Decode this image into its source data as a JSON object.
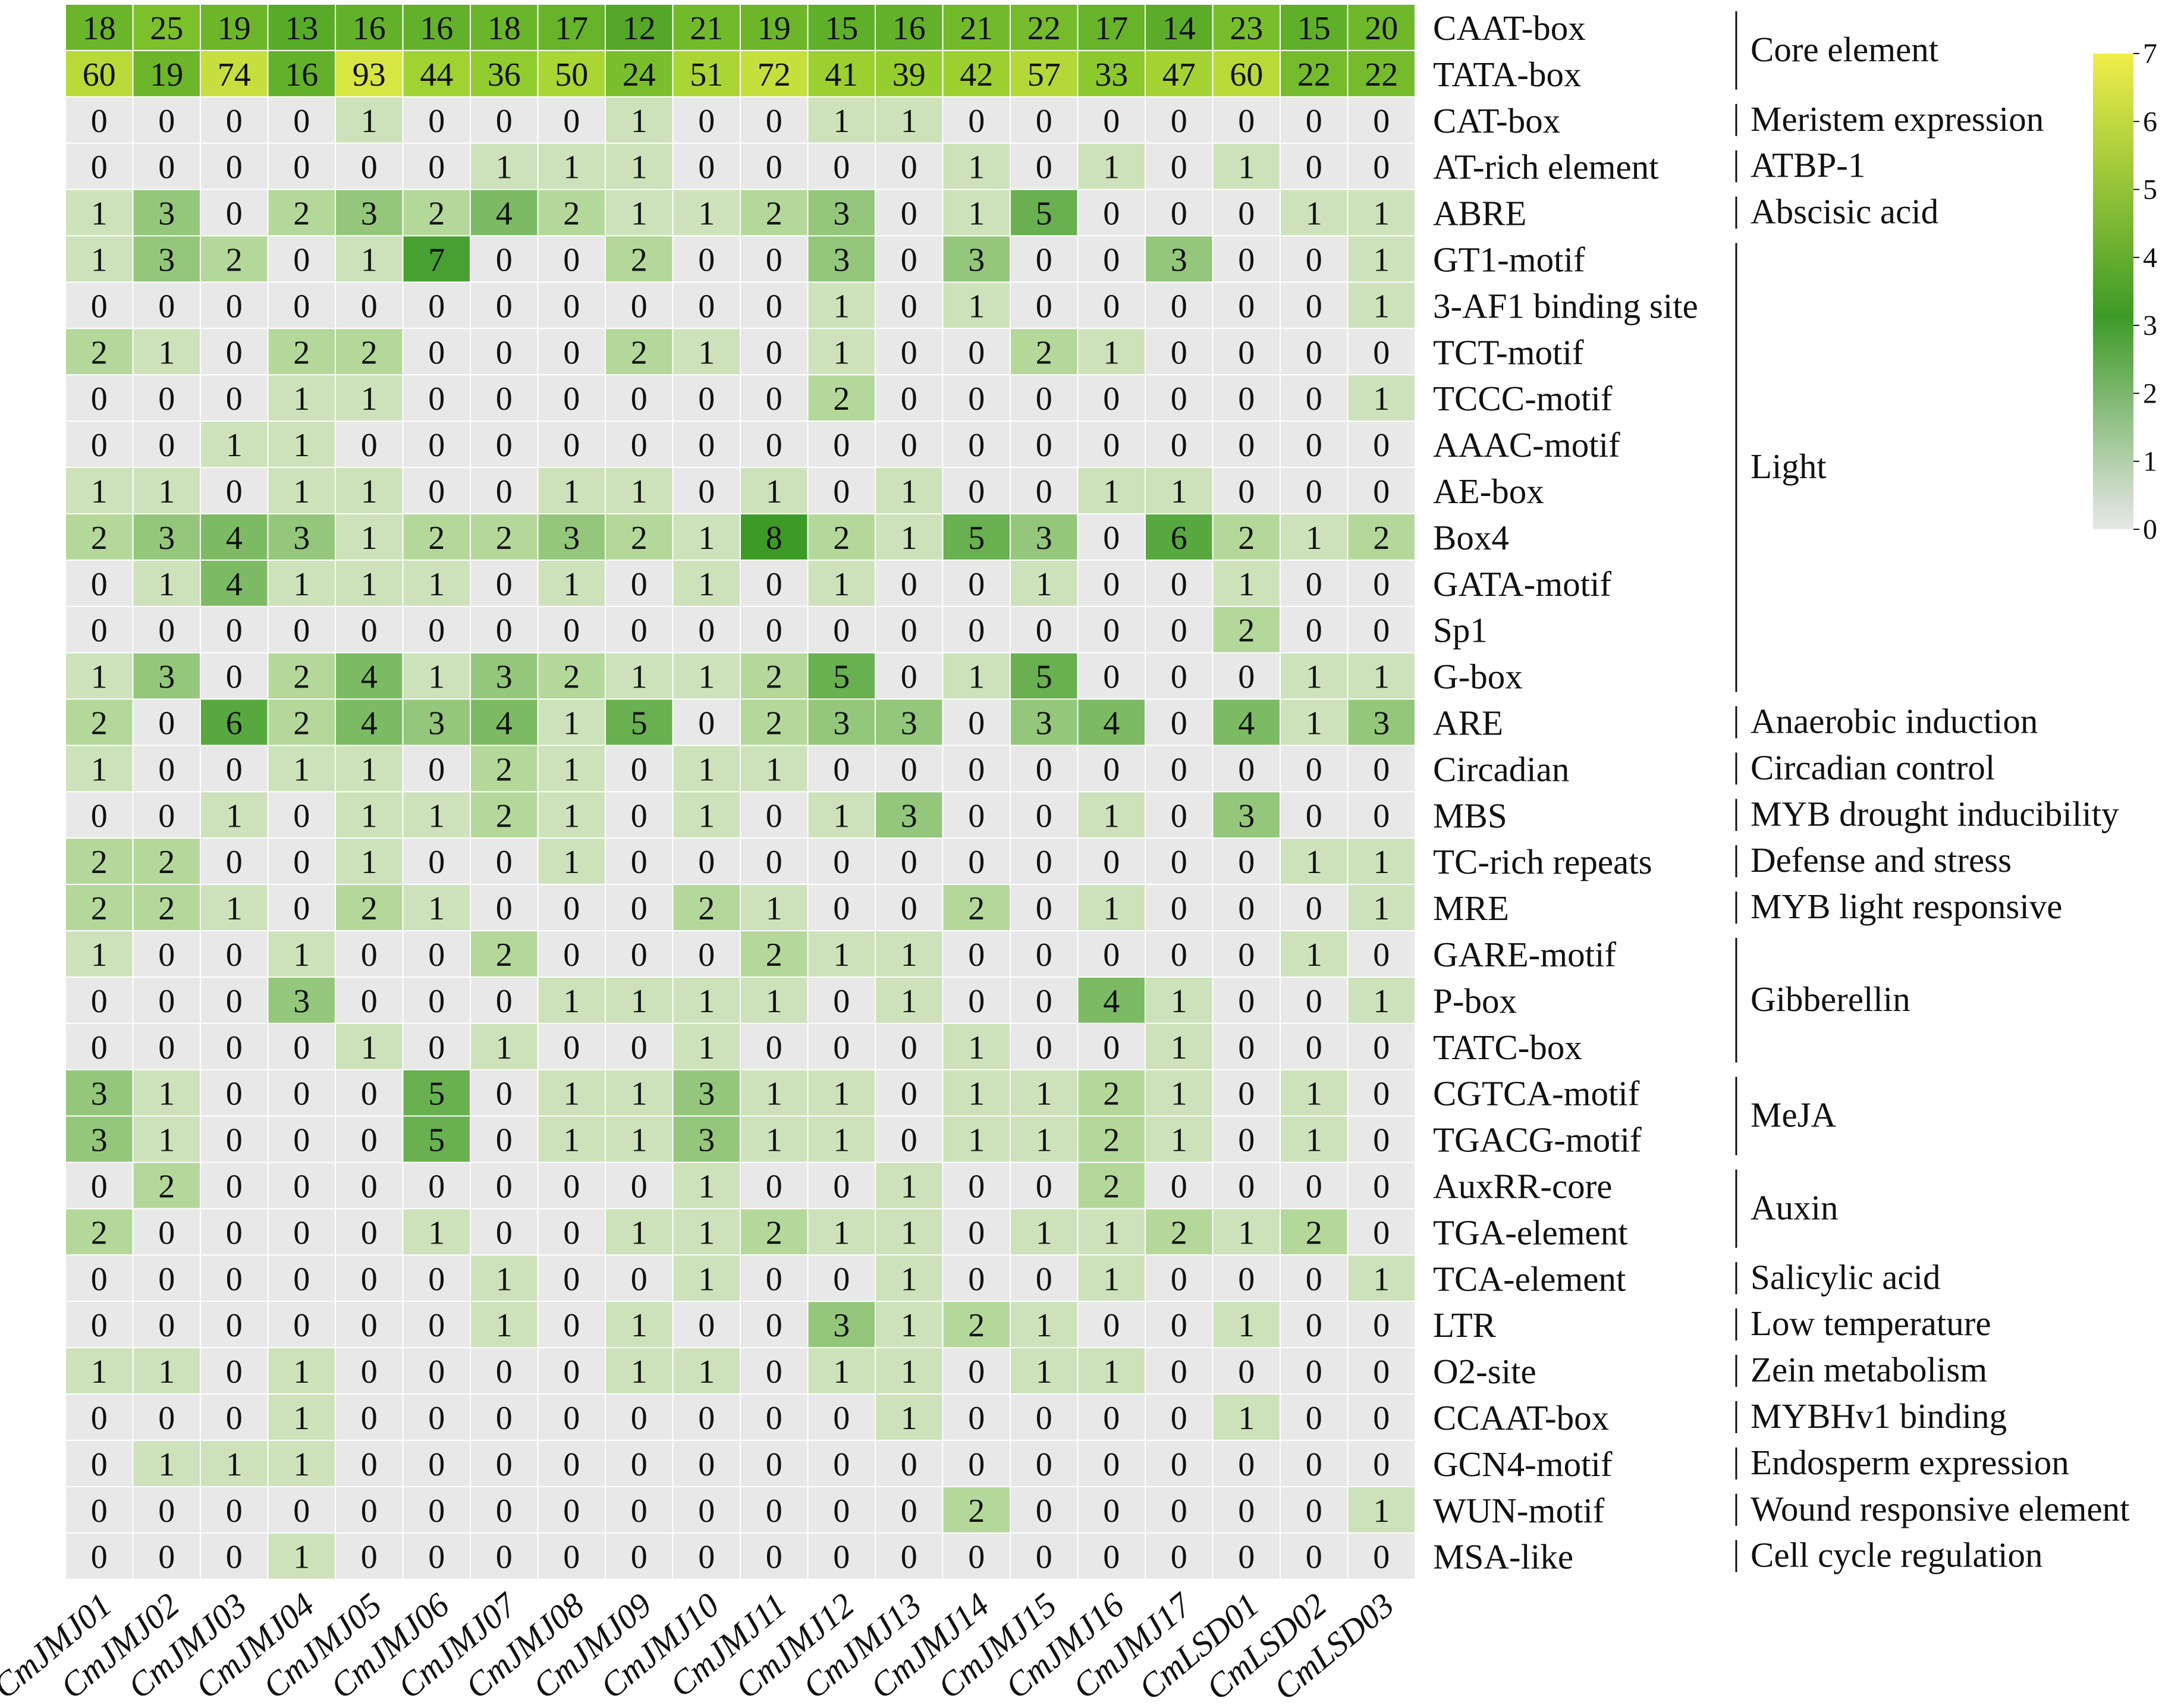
{
  "chart_data": {
    "type": "heatmap",
    "title": "",
    "xlabel": "",
    "ylabel": "",
    "columns": [
      "CmJMJ01",
      "CmJMJ02",
      "CmJMJ03",
      "CmJMJ04",
      "CmJMJ05",
      "CmJMJ06",
      "CmJMJ07",
      "CmJMJ08",
      "CmJMJ09",
      "CmJMJ10",
      "CmJMJ11",
      "CmJMJ12",
      "CmJMJ13",
      "CmJMJ14",
      "CmJMJ15",
      "CmJMJ16",
      "CmJMJ17",
      "CmLSD01",
      "CmLSD02",
      "CmLSD03"
    ],
    "rows": [
      {
        "label": "CAAT-box",
        "values": [
          18,
          25,
          19,
          13,
          16,
          16,
          18,
          17,
          12,
          21,
          19,
          15,
          16,
          21,
          22,
          17,
          14,
          23,
          15,
          20
        ]
      },
      {
        "label": "TATA-box",
        "values": [
          60,
          19,
          74,
          16,
          93,
          44,
          36,
          50,
          24,
          51,
          72,
          41,
          39,
          42,
          57,
          33,
          47,
          60,
          22,
          22
        ]
      },
      {
        "label": "CAT-box",
        "values": [
          0,
          0,
          0,
          0,
          1,
          0,
          0,
          0,
          1,
          0,
          0,
          1,
          1,
          0,
          0,
          0,
          0,
          0,
          0,
          0
        ]
      },
      {
        "label": "AT-rich element",
        "values": [
          0,
          0,
          0,
          0,
          0,
          0,
          1,
          1,
          1,
          0,
          0,
          0,
          0,
          1,
          0,
          1,
          0,
          1,
          0,
          0
        ]
      },
      {
        "label": "ABRE",
        "values": [
          1,
          3,
          0,
          2,
          3,
          2,
          4,
          2,
          1,
          1,
          2,
          3,
          0,
          1,
          5,
          0,
          0,
          0,
          1,
          1
        ]
      },
      {
        "label": "GT1-motif",
        "values": [
          1,
          3,
          2,
          0,
          1,
          7,
          0,
          0,
          2,
          0,
          0,
          3,
          0,
          3,
          0,
          0,
          3,
          0,
          0,
          1
        ]
      },
      {
        "label": "3-AF1 binding site",
        "values": [
          0,
          0,
          0,
          0,
          0,
          0,
          0,
          0,
          0,
          0,
          0,
          1,
          0,
          1,
          0,
          0,
          0,
          0,
          0,
          1
        ]
      },
      {
        "label": "TCT-motif",
        "values": [
          2,
          1,
          0,
          2,
          2,
          0,
          0,
          0,
          2,
          1,
          0,
          1,
          0,
          0,
          2,
          1,
          0,
          0,
          0,
          0
        ]
      },
      {
        "label": "TCCC-motif",
        "values": [
          0,
          0,
          0,
          1,
          1,
          0,
          0,
          0,
          0,
          0,
          0,
          2,
          0,
          0,
          0,
          0,
          0,
          0,
          0,
          1
        ]
      },
      {
        "label": "AAAC-motif",
        "values": [
          0,
          0,
          1,
          1,
          0,
          0,
          0,
          0,
          0,
          0,
          0,
          0,
          0,
          0,
          0,
          0,
          0,
          0,
          0,
          0
        ]
      },
      {
        "label": "AE-box",
        "values": [
          1,
          1,
          0,
          1,
          1,
          0,
          0,
          1,
          1,
          0,
          1,
          0,
          1,
          0,
          0,
          1,
          1,
          0,
          0,
          0
        ]
      },
      {
        "label": "Box4",
        "values": [
          2,
          3,
          4,
          3,
          1,
          2,
          2,
          3,
          2,
          1,
          8,
          2,
          1,
          5,
          3,
          0,
          6,
          2,
          1,
          2
        ]
      },
      {
        "label": "GATA-motif",
        "values": [
          0,
          1,
          4,
          1,
          1,
          1,
          0,
          1,
          0,
          1,
          0,
          1,
          0,
          0,
          1,
          0,
          0,
          1,
          0,
          0
        ]
      },
      {
        "label": "Sp1",
        "values": [
          0,
          0,
          0,
          0,
          0,
          0,
          0,
          0,
          0,
          0,
          0,
          0,
          0,
          0,
          0,
          0,
          0,
          2,
          0,
          0
        ]
      },
      {
        "label": "G-box",
        "values": [
          1,
          3,
          0,
          2,
          4,
          1,
          3,
          2,
          1,
          1,
          2,
          5,
          0,
          1,
          5,
          0,
          0,
          0,
          1,
          1
        ]
      },
      {
        "label": "ARE",
        "values": [
          2,
          0,
          6,
          2,
          4,
          3,
          4,
          1,
          5,
          0,
          2,
          3,
          3,
          0,
          3,
          4,
          0,
          4,
          1,
          3
        ]
      },
      {
        "label": "Circadian",
        "values": [
          1,
          0,
          0,
          1,
          1,
          0,
          2,
          1,
          0,
          1,
          1,
          0,
          0,
          0,
          0,
          0,
          0,
          0,
          0,
          0
        ]
      },
      {
        "label": "MBS",
        "values": [
          0,
          0,
          1,
          0,
          1,
          1,
          2,
          1,
          0,
          1,
          0,
          1,
          3,
          0,
          0,
          1,
          0,
          3,
          0,
          0
        ]
      },
      {
        "label": "TC-rich repeats",
        "values": [
          2,
          2,
          0,
          0,
          1,
          0,
          0,
          1,
          0,
          0,
          0,
          0,
          0,
          0,
          0,
          0,
          0,
          0,
          1,
          1
        ]
      },
      {
        "label": "MRE",
        "values": [
          2,
          2,
          1,
          0,
          2,
          1,
          0,
          0,
          0,
          2,
          1,
          0,
          0,
          2,
          0,
          1,
          0,
          0,
          0,
          1
        ]
      },
      {
        "label": "GARE-motif",
        "values": [
          1,
          0,
          0,
          1,
          0,
          0,
          2,
          0,
          0,
          0,
          2,
          1,
          1,
          0,
          0,
          0,
          0,
          0,
          1,
          0
        ]
      },
      {
        "label": "P-box",
        "values": [
          0,
          0,
          0,
          3,
          0,
          0,
          0,
          1,
          1,
          1,
          1,
          0,
          1,
          0,
          0,
          4,
          1,
          0,
          0,
          1
        ]
      },
      {
        "label": "TATC-box",
        "values": [
          0,
          0,
          0,
          0,
          1,
          0,
          1,
          0,
          0,
          1,
          0,
          0,
          0,
          1,
          0,
          0,
          1,
          0,
          0,
          0
        ]
      },
      {
        "label": "CGTCA-motif",
        "values": [
          3,
          1,
          0,
          0,
          0,
          5,
          0,
          1,
          1,
          3,
          1,
          1,
          0,
          1,
          1,
          2,
          1,
          0,
          1,
          0
        ]
      },
      {
        "label": "TGACG-motif",
        "values": [
          3,
          1,
          0,
          0,
          0,
          5,
          0,
          1,
          1,
          3,
          1,
          1,
          0,
          1,
          1,
          2,
          1,
          0,
          1,
          0
        ]
      },
      {
        "label": "AuxRR-core",
        "values": [
          0,
          2,
          0,
          0,
          0,
          0,
          0,
          0,
          0,
          1,
          0,
          0,
          1,
          0,
          0,
          2,
          0,
          0,
          0,
          0
        ]
      },
      {
        "label": "TGA-element",
        "values": [
          2,
          0,
          0,
          0,
          0,
          1,
          0,
          0,
          1,
          1,
          2,
          1,
          1,
          0,
          1,
          1,
          2,
          1,
          2,
          0
        ]
      },
      {
        "label": "TCA-element",
        "values": [
          0,
          0,
          0,
          0,
          0,
          0,
          1,
          0,
          0,
          1,
          0,
          0,
          1,
          0,
          0,
          1,
          0,
          0,
          0,
          1
        ]
      },
      {
        "label": "LTR",
        "values": [
          0,
          0,
          0,
          0,
          0,
          0,
          1,
          0,
          1,
          0,
          0,
          3,
          1,
          2,
          1,
          0,
          0,
          1,
          0,
          0
        ]
      },
      {
        "label": "O2-site",
        "values": [
          1,
          1,
          0,
          1,
          0,
          0,
          0,
          0,
          1,
          1,
          0,
          1,
          1,
          0,
          1,
          1,
          0,
          0,
          0,
          0
        ]
      },
      {
        "label": "CCAAT-box",
        "values": [
          0,
          0,
          0,
          1,
          0,
          0,
          0,
          0,
          0,
          0,
          0,
          0,
          1,
          0,
          0,
          0,
          0,
          1,
          0,
          0
        ]
      },
      {
        "label": "GCN4-motif",
        "values": [
          0,
          1,
          1,
          1,
          0,
          0,
          0,
          0,
          0,
          0,
          0,
          0,
          0,
          0,
          0,
          0,
          0,
          0,
          0,
          0
        ]
      },
      {
        "label": "WUN-motif",
        "values": [
          0,
          0,
          0,
          0,
          0,
          0,
          0,
          0,
          0,
          0,
          0,
          0,
          0,
          2,
          0,
          0,
          0,
          0,
          0,
          1
        ]
      },
      {
        "label": "MSA-like",
        "values": [
          0,
          0,
          0,
          1,
          0,
          0,
          0,
          0,
          0,
          0,
          0,
          0,
          0,
          0,
          0,
          0,
          0,
          0,
          0,
          0
        ]
      }
    ],
    "groups": [
      {
        "label": "Core element",
        "rows": [
          0,
          1
        ]
      },
      {
        "label": "Meristem expression",
        "rows": [
          2,
          2
        ]
      },
      {
        "label": "ATBP-1",
        "rows": [
          3,
          3
        ]
      },
      {
        "label": "Abscisic acid",
        "rows": [
          4,
          4
        ]
      },
      {
        "label": "Light",
        "rows": [
          5,
          14
        ]
      },
      {
        "label": "Anaerobic induction",
        "rows": [
          15,
          15
        ]
      },
      {
        "label": "Circadian control",
        "rows": [
          16,
          16
        ]
      },
      {
        "label": "MYB drought inducibility",
        "rows": [
          17,
          17
        ]
      },
      {
        "label": "Defense and stress",
        "rows": [
          18,
          18
        ]
      },
      {
        "label": "MYB light responsive",
        "rows": [
          19,
          19
        ]
      },
      {
        "label": "Gibberellin",
        "rows": [
          20,
          22
        ]
      },
      {
        "label": "MeJA",
        "rows": [
          23,
          24
        ]
      },
      {
        "label": "Auxin",
        "rows": [
          25,
          26
        ]
      },
      {
        "label": "Salicylic acid",
        "rows": [
          27,
          27
        ]
      },
      {
        "label": "Low temperature",
        "rows": [
          28,
          28
        ]
      },
      {
        "label": "Zein metabolism",
        "rows": [
          29,
          29
        ]
      },
      {
        "label": "MYBHv1 binding",
        "rows": [
          30,
          30
        ]
      },
      {
        "label": "Endosperm expression",
        "rows": [
          31,
          31
        ]
      },
      {
        "label": "Wound responsive element",
        "rows": [
          32,
          32
        ]
      },
      {
        "label": "Cell cycle regulation",
        "rows": [
          33,
          33
        ]
      }
    ],
    "colorbar": {
      "ticks": [
        "0",
        "1",
        "2",
        "3",
        "4",
        "5",
        "6",
        "7"
      ],
      "range": [
        0,
        7
      ],
      "scale": "log2(count+1)",
      "colors": [
        "#e8e8e8",
        "#3d9a26",
        "#f0ee4a"
      ],
      "placement": "top-right"
    }
  }
}
